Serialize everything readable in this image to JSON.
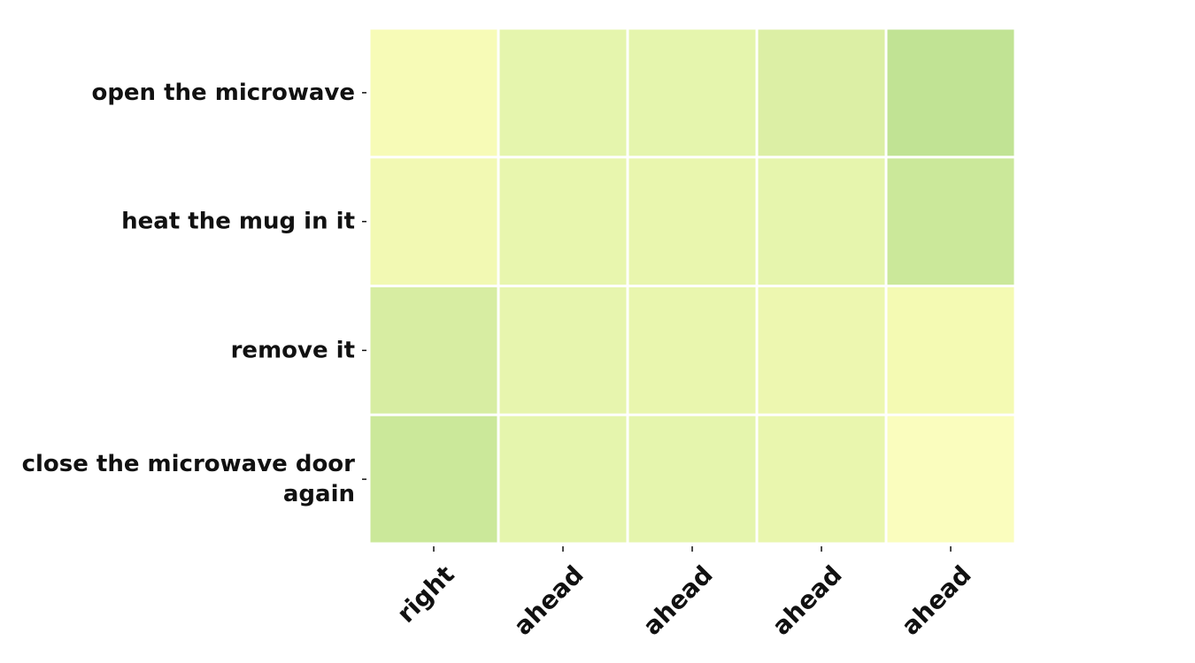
{
  "chart_data": {
    "type": "heatmap",
    "rows": [
      "open the microwave",
      "heat the mug in it",
      "remove it",
      "close the microwave door again"
    ],
    "row_label_lines": [
      [
        "open the microwave"
      ],
      [
        "heat the mug in it"
      ],
      [
        "remove it"
      ],
      [
        "close the microwave door",
        "again"
      ]
    ],
    "columns": [
      "right",
      "ahead",
      "ahead",
      "ahead",
      "ahead"
    ],
    "values": [
      [
        0.14,
        0.34,
        0.34,
        0.45,
        0.68
      ],
      [
        0.2,
        0.31,
        0.3,
        0.33,
        0.6
      ],
      [
        0.5,
        0.32,
        0.3,
        0.26,
        0.18
      ],
      [
        0.6,
        0.34,
        0.34,
        0.3,
        0.08
      ]
    ],
    "value_range": [
      0,
      1
    ],
    "colormap": [
      "#ffffc8",
      "#f5fab4",
      "#e6f5ad",
      "#d7eda2",
      "#c3e495",
      "#add98a",
      "#8fcc80"
    ],
    "grid": false,
    "legend": "none",
    "cell_gap_color": "#ffffff"
  }
}
